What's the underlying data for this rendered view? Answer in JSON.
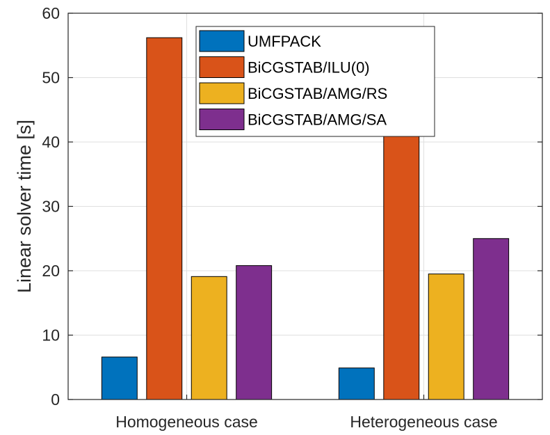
{
  "chart_data": {
    "type": "bar",
    "title": "",
    "xlabel": "",
    "ylabel": "Linear solver time [s]",
    "categories": [
      "Homogeneous case",
      "Heterogeneous case"
    ],
    "ylim": [
      0,
      60
    ],
    "yticks": [
      0,
      10,
      20,
      30,
      40,
      50,
      60
    ],
    "grid": true,
    "legend_position": "top-center",
    "series": [
      {
        "name": "UMFPACK",
        "color": "#0072BD",
        "values": [
          6.6,
          4.9
        ]
      },
      {
        "name": "BiCGSTAB/ILU(0)",
        "color": "#D95319",
        "values": [
          56.2,
          43.0
        ]
      },
      {
        "name": "BiCGSTAB/AMG/RS",
        "color": "#EDB120",
        "values": [
          19.1,
          19.5
        ]
      },
      {
        "name": "BiCGSTAB/AMG/SA",
        "color": "#7E2F8E",
        "values": [
          20.8,
          25.0
        ]
      }
    ]
  }
}
